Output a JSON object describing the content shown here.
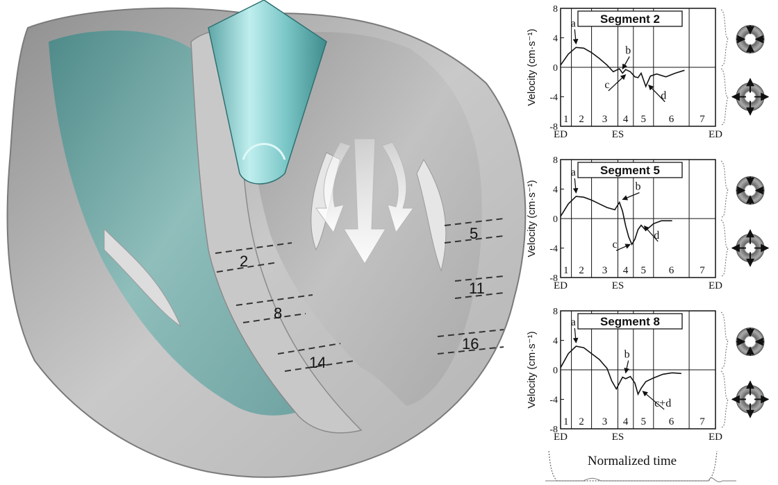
{
  "heart": {
    "segment_labels": [
      "2",
      "8",
      "14",
      "5",
      "11",
      "16"
    ]
  },
  "plots": [
    {
      "title": "Segment 2",
      "ylabel": "Velocity (cm·s⁻¹)",
      "yticks": [
        "8",
        "4",
        "0",
        "-4",
        "-8"
      ],
      "phases": [
        "1",
        "2",
        "3",
        "4",
        "5",
        "6",
        "7"
      ],
      "bottom_labels": [
        "ED",
        "ES",
        "ED"
      ],
      "annotations": [
        "a",
        "b",
        "c",
        "d"
      ],
      "icon_top": "contraction-icon",
      "icon_bottom": "expansion-icon"
    },
    {
      "title": "Segment 5",
      "ylabel": "Velocity (cm·s⁻¹)",
      "yticks": [
        "8",
        "4",
        "0",
        "-4",
        "-8"
      ],
      "phases": [
        "1",
        "2",
        "3",
        "4",
        "5",
        "6",
        "7"
      ],
      "bottom_labels": [
        "ED",
        "ES",
        "ED"
      ],
      "annotations": [
        "a",
        "b",
        "c",
        "d"
      ],
      "icon_top": "contraction-icon",
      "icon_bottom": "expansion-icon"
    },
    {
      "title": "Segment 8",
      "ylabel": "Velocity (cm·s⁻¹)",
      "yticks": [
        "8",
        "4",
        "0",
        "-4",
        "-8"
      ],
      "phases": [
        "1",
        "2",
        "3",
        "4",
        "5",
        "6",
        "7"
      ],
      "bottom_labels": [
        "ED",
        "ES",
        "ED"
      ],
      "annotations": [
        "a",
        "b",
        "c+d"
      ],
      "icon_top": "contraction-icon",
      "icon_bottom": "expansion-icon"
    }
  ],
  "xlabel": "Normalized time",
  "chart_data": [
    {
      "type": "line",
      "title": "Segment 2",
      "ylabel": "Velocity (cm·s⁻¹)",
      "ylim": [
        -8,
        8
      ],
      "x_phase_boundaries": [
        0,
        0.07,
        0.2,
        0.37,
        0.47,
        0.6,
        0.83,
        1.0
      ],
      "x": [
        0.0,
        0.05,
        0.1,
        0.15,
        0.2,
        0.25,
        0.3,
        0.34,
        0.38,
        0.4,
        0.42,
        0.45,
        0.48,
        0.5,
        0.52,
        0.55,
        0.58,
        0.62,
        0.68,
        0.74,
        0.8
      ],
      "y": [
        0.3,
        1.8,
        2.7,
        2.6,
        2.0,
        1.2,
        0.3,
        -0.6,
        -0.2,
        -0.8,
        -0.3,
        -0.6,
        -1.3,
        -1.4,
        -0.8,
        -2.6,
        -1.2,
        -0.9,
        -1.3,
        -0.8,
        -0.4
      ]
    },
    {
      "type": "line",
      "title": "Segment 5",
      "ylabel": "Velocity (cm·s⁻¹)",
      "ylim": [
        -8,
        8
      ],
      "x_phase_boundaries": [
        0,
        0.07,
        0.2,
        0.37,
        0.47,
        0.6,
        0.83,
        1.0
      ],
      "x": [
        0.0,
        0.05,
        0.1,
        0.15,
        0.2,
        0.25,
        0.3,
        0.35,
        0.38,
        0.4,
        0.42,
        0.44,
        0.46,
        0.48,
        0.5,
        0.52,
        0.55,
        0.6,
        0.65,
        0.72
      ],
      "y": [
        0.3,
        2.0,
        3.0,
        2.9,
        2.5,
        2.0,
        1.5,
        1.2,
        2.2,
        1.0,
        -1.0,
        -2.5,
        -3.5,
        -2.8,
        -1.5,
        -0.9,
        -1.6,
        -0.7,
        -0.3,
        -0.3
      ]
    },
    {
      "type": "line",
      "title": "Segment 8",
      "ylabel": "Velocity (cm·s⁻¹)",
      "ylim": [
        -8,
        8
      ],
      "x_phase_boundaries": [
        0,
        0.07,
        0.2,
        0.37,
        0.47,
        0.6,
        0.83,
        1.0
      ],
      "x": [
        0.0,
        0.05,
        0.1,
        0.15,
        0.2,
        0.25,
        0.3,
        0.33,
        0.36,
        0.38,
        0.4,
        0.42,
        0.45,
        0.48,
        0.5,
        0.52,
        0.55,
        0.6,
        0.66,
        0.72,
        0.78
      ],
      "y": [
        0.3,
        2.2,
        3.2,
        3.0,
        2.2,
        1.4,
        0.2,
        -1.5,
        -2.6,
        -1.8,
        -1.0,
        -1.2,
        -0.9,
        -1.8,
        -3.3,
        -2.5,
        -1.6,
        -1.1,
        -0.6,
        -0.4,
        -0.5
      ]
    }
  ]
}
